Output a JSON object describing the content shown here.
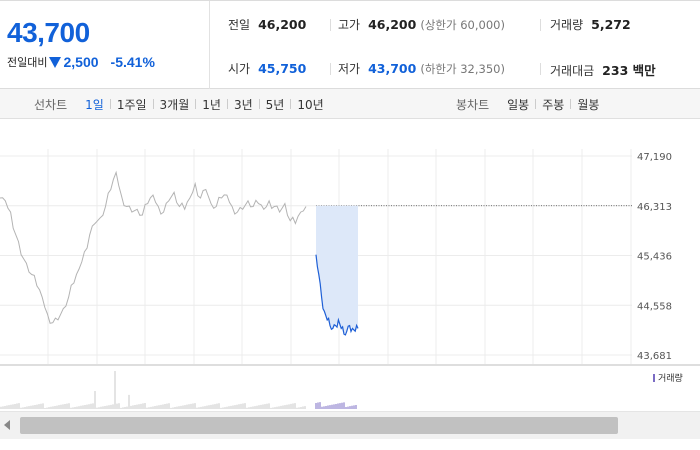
{
  "summary": {
    "current_price": "43,700",
    "change_label": "전일대비",
    "change_icon": "down-triangle-icon",
    "change_value": "2,500",
    "change_rate": "-5.41%"
  },
  "stats": {
    "prev_close": {
      "label": "전일",
      "value": "46,200"
    },
    "high": {
      "label": "고가",
      "value": "46,200",
      "sub": "(상한가 60,000)"
    },
    "volume": {
      "label": "거래량",
      "value": "5,272"
    },
    "open": {
      "label": "시가",
      "value": "45,750"
    },
    "low": {
      "label": "저가",
      "value": "43,700",
      "sub": "(하한가 32,350)"
    },
    "trade_amount": {
      "label": "거래대금",
      "value": "233 백만"
    }
  },
  "line_tabs": {
    "label": "선차트",
    "items": [
      "1일",
      "1주일",
      "3개월",
      "1년",
      "3년",
      "5년",
      "10년"
    ],
    "active": "1일"
  },
  "candle_tabs": {
    "label": "봉차트",
    "items": [
      "일봉",
      "주봉",
      "월봉"
    ]
  },
  "chart_data": {
    "type": "line",
    "ylim": [
      43681,
      47190
    ],
    "y_ticks": [
      "47,190",
      "46,313",
      "45,436",
      "44,558",
      "43,681"
    ],
    "reference_line": 46313,
    "series": [
      {
        "values": [
          46450,
          46400,
          46200,
          45800,
          45450,
          45300,
          45100,
          44900,
          44700,
          44400,
          44250,
          44300,
          44500,
          44700,
          44950,
          45200,
          45500,
          45800,
          46000,
          46100,
          46300,
          46600,
          46900,
          46500,
          46300,
          46200,
          46250,
          46150,
          46350,
          46500,
          46300,
          46200,
          46400,
          46550,
          46300,
          46250,
          46450,
          46700,
          46450,
          46600,
          46350,
          46300,
          46450,
          46500,
          46300,
          46200,
          46250,
          46400,
          46300,
          46350,
          46250,
          46400,
          46300,
          46200,
          46350,
          46050,
          46000,
          46200,
          46300
        ]
      },
      {
        "values": [
          45450,
          45100,
          44700,
          44450,
          44300,
          44200,
          44150,
          44200,
          44300,
          44150,
          44050,
          44100,
          44200,
          44150,
          44100,
          44150
        ]
      }
    ],
    "volume_legend": "거래량"
  },
  "colors": {
    "accent": "#1161d9",
    "morning_line": "#b3b3b3",
    "today_line": "#1e5fd6",
    "today_fill": "#dde8f9"
  }
}
